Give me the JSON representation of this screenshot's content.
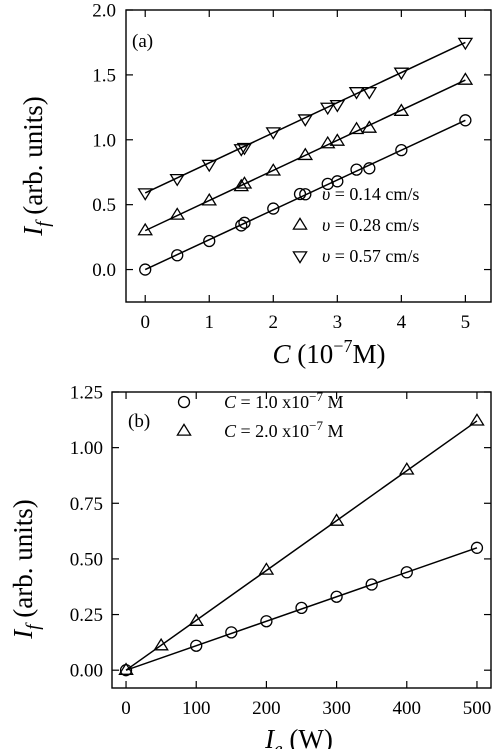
{
  "chart_data": [
    {
      "panel_label": "(a)",
      "type": "line",
      "markers_with_fit_lines": true,
      "ylabel": {
        "main": "I",
        "sub": "f",
        "rest": " (arb. units)"
      },
      "xlabel": {
        "main": "C",
        "rest": " (10",
        "exp": "−7",
        "unit": "M)"
      },
      "xlim": [
        -0.3,
        5.4
      ],
      "ylim": [
        -0.25,
        2.0
      ],
      "xticks": [
        0,
        1,
        2,
        3,
        4,
        5
      ],
      "xtick_labels": [
        "0",
        "1",
        "2",
        "3",
        "4",
        "5"
      ],
      "yticks": [
        0.0,
        0.5,
        1.0,
        1.5,
        2.0
      ],
      "ytick_labels": [
        "0.0",
        "0.5",
        "1.0",
        "1.5",
        "2.0"
      ],
      "legend_position": "lower-right",
      "series": [
        {
          "name": "υ = 0.14 cm/s",
          "legend": {
            "symbol": "υ",
            "rest": " = 0.14 cm/s"
          },
          "marker": "circle",
          "x": [
            0,
            0.5,
            1.0,
            1.5,
            1.55,
            2.0,
            2.5,
            2.85,
            3.0,
            3.3,
            3.5,
            4.0,
            5.0
          ],
          "y": [
            0.0,
            0.11,
            0.22,
            0.34,
            0.36,
            0.47,
            0.58,
            0.66,
            0.68,
            0.77,
            0.78,
            0.92,
            1.15
          ],
          "fit": {
            "x": [
              0,
              5
            ],
            "y": [
              0.0,
              1.15
            ]
          }
        },
        {
          "name": "υ = 0.28 cm/s",
          "legend": {
            "symbol": "υ",
            "rest": " = 0.28 cm/s"
          },
          "marker": "triangle-up",
          "x": [
            0,
            0.5,
            1.0,
            1.5,
            1.55,
            2.0,
            2.5,
            2.85,
            3.0,
            3.3,
            3.5,
            4.0,
            5.0
          ],
          "y": [
            0.3,
            0.42,
            0.53,
            0.64,
            0.66,
            0.76,
            0.88,
            0.97,
            0.99,
            1.08,
            1.09,
            1.22,
            1.46
          ],
          "fit": {
            "x": [
              0,
              5
            ],
            "y": [
              0.3,
              1.46
            ]
          }
        },
        {
          "name": "υ = 0.57 cm/s",
          "legend": {
            "symbol": "υ",
            "rest": " = 0.57 cm/s"
          },
          "marker": "triangle-down",
          "x": [
            0,
            0.5,
            1.0,
            1.5,
            1.55,
            2.0,
            2.5,
            2.85,
            3.0,
            3.3,
            3.5,
            4.0,
            5.0
          ],
          "y": [
            0.59,
            0.7,
            0.81,
            0.93,
            0.94,
            1.06,
            1.16,
            1.25,
            1.27,
            1.37,
            1.37,
            1.52,
            1.75
          ],
          "fit": {
            "x": [
              0,
              5
            ],
            "y": [
              0.59,
              1.75
            ]
          }
        }
      ]
    },
    {
      "panel_label": "(b)",
      "type": "line",
      "markers_with_fit_lines": true,
      "ylabel": {
        "main": "I",
        "sub": "f",
        "rest": " (arb. units)"
      },
      "xlabel": {
        "main": "I",
        "sub": "e",
        "rest": " (W)"
      },
      "xlim": [
        -20,
        520
      ],
      "ylim": [
        -0.08,
        1.25
      ],
      "xticks": [
        0,
        100,
        200,
        300,
        400,
        500
      ],
      "xtick_labels": [
        "0",
        "100",
        "200",
        "300",
        "400",
        "500"
      ],
      "yticks": [
        0.0,
        0.25,
        0.5,
        0.75,
        1.0,
        1.25
      ],
      "ytick_labels": [
        "0.00",
        "0.25",
        "0.50",
        "0.75",
        "1.00",
        "1.25"
      ],
      "legend_position": "top-left",
      "series": [
        {
          "name": "C = 1.0 x10−7 M",
          "legend": {
            "symbol": "C",
            "rest": " = 1.0 x10",
            "exp": "−7",
            "unit": " M"
          },
          "marker": "circle",
          "x": [
            0,
            100,
            150,
            200,
            250,
            300,
            350,
            400,
            500
          ],
          "y": [
            0.0,
            0.11,
            0.17,
            0.22,
            0.28,
            0.33,
            0.385,
            0.44,
            0.55
          ],
          "fit": {
            "x": [
              0,
              500
            ],
            "y": [
              0.0,
              0.55
            ]
          }
        },
        {
          "name": "C = 2.0 x10−7 M",
          "legend": {
            "symbol": "C",
            "rest": " = 2.0 x10",
            "exp": "−7",
            "unit": " M"
          },
          "marker": "triangle-up",
          "x": [
            0,
            50,
            100,
            200,
            300,
            400,
            500
          ],
          "y": [
            0.0,
            0.11,
            0.22,
            0.45,
            0.67,
            0.9,
            1.12
          ],
          "fit": {
            "x": [
              0,
              500
            ],
            "y": [
              0.0,
              1.12
            ]
          }
        }
      ]
    }
  ]
}
